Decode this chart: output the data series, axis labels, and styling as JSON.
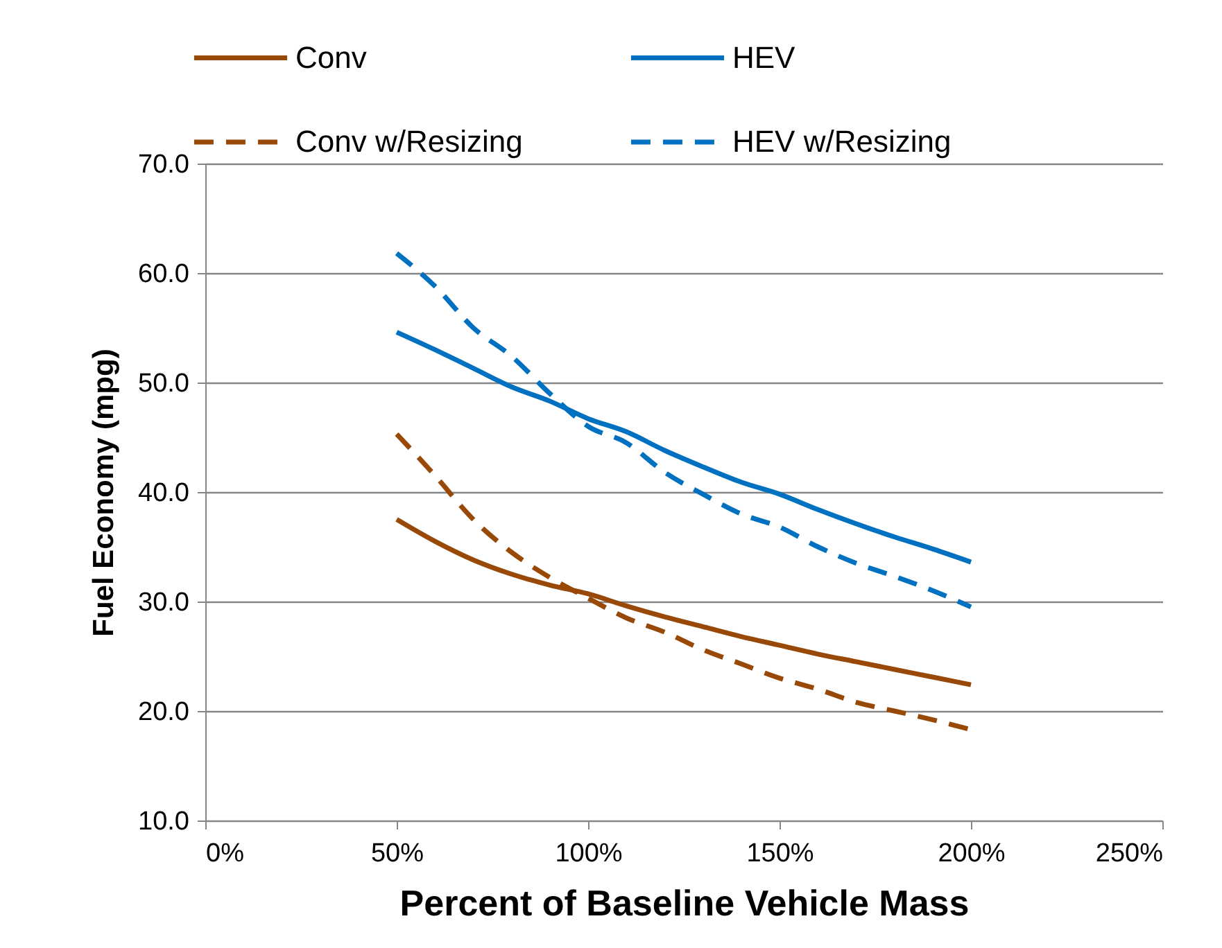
{
  "chart_data": {
    "type": "line",
    "xlabel": "Percent of Baseline Vehicle Mass",
    "ylabel": "Fuel Economy (mpg)",
    "x": [
      50,
      60,
      70,
      80,
      90,
      100,
      110,
      120,
      130,
      140,
      150,
      160,
      170,
      180,
      190,
      200
    ],
    "series": [
      {
        "name": "Conv",
        "color": "#984807",
        "line_style": "solid",
        "values": [
          37.5,
          35.5,
          33.8,
          32.5,
          31.5,
          30.7,
          29.6,
          28.6,
          27.7,
          26.8,
          26.0,
          25.2,
          24.5,
          23.8,
          23.1,
          22.4
        ]
      },
      {
        "name": "Conv w/Resizing",
        "color": "#984807",
        "line_style": "dashed",
        "values": [
          45.3,
          41.5,
          37.5,
          34.5,
          32.2,
          30.3,
          28.5,
          27.2,
          25.6,
          24.3,
          23.0,
          22.0,
          20.8,
          20.0,
          19.2,
          18.3
        ]
      },
      {
        "name": "HEV",
        "color": "#0070c0",
        "line_style": "solid",
        "values": [
          54.6,
          53.0,
          51.3,
          49.6,
          48.3,
          46.7,
          45.5,
          43.8,
          42.3,
          40.9,
          39.8,
          38.4,
          37.1,
          35.9,
          34.8,
          33.6
        ]
      },
      {
        "name": "HEV w/Resizing",
        "color": "#0070c0",
        "line_style": "dashed",
        "values": [
          61.8,
          58.8,
          55.0,
          52.4,
          49.0,
          46.0,
          44.5,
          41.8,
          39.8,
          38.0,
          36.8,
          35.0,
          33.5,
          32.3,
          31.0,
          29.5
        ]
      }
    ],
    "xlim": [
      0,
      250
    ],
    "xticks": [
      {
        "value": 0,
        "label": "0%"
      },
      {
        "value": 50,
        "label": "50%"
      },
      {
        "value": 100,
        "label": "100%"
      },
      {
        "value": 150,
        "label": "150%"
      },
      {
        "value": 200,
        "label": "200%"
      },
      {
        "value": 250,
        "label": "250%"
      }
    ],
    "ylim": [
      10,
      70
    ],
    "yticks": [
      {
        "value": 10,
        "label": "10.0"
      },
      {
        "value": 20,
        "label": "20.0"
      },
      {
        "value": 30,
        "label": "30.0"
      },
      {
        "value": 40,
        "label": "40.0"
      },
      {
        "value": 50,
        "label": "50.0"
      },
      {
        "value": 60,
        "label": "60.0"
      },
      {
        "value": 70,
        "label": "70.0"
      }
    ],
    "grid": "y",
    "legend": "top",
    "marker": "none"
  }
}
